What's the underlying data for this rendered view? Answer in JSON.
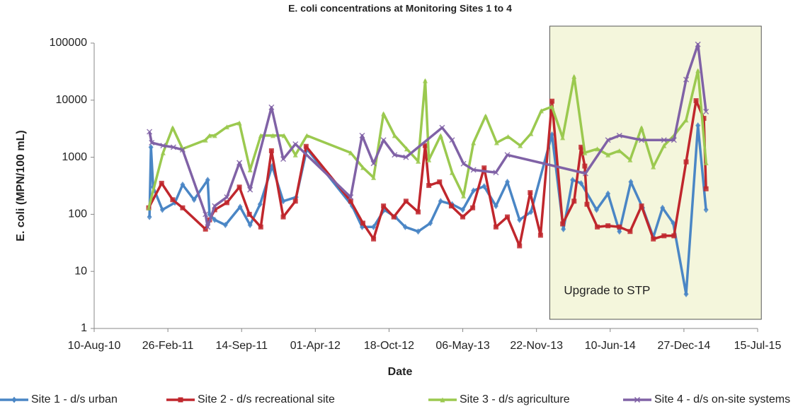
{
  "chart_data": {
    "type": "line",
    "title": "E. coli concentrations at Monitoring Sites 1 to 4",
    "x_label": "Date",
    "y_label": "E. coli (MPN/100 mL)",
    "log_y": true,
    "xlim": [
      "2010-08-10",
      "2015-07-15"
    ],
    "xticks": [
      {
        "value": "2010-08-10",
        "label": "10-Aug-10"
      },
      {
        "value": "2011-02-26",
        "label": "26-Feb-11"
      },
      {
        "value": "2011-09-14",
        "label": "14-Sep-11"
      },
      {
        "value": "2012-04-01",
        "label": "01-Apr-12"
      },
      {
        "value": "2012-10-18",
        "label": "18-Oct-12"
      },
      {
        "value": "2013-05-06",
        "label": "06-May-13"
      },
      {
        "value": "2013-11-22",
        "label": "22-Nov-13"
      },
      {
        "value": "2014-06-10",
        "label": "10-Jun-14"
      },
      {
        "value": "2014-12-27",
        "label": "27-Dec-14"
      },
      {
        "value": "2015-07-15",
        "label": "15-Jul-15"
      }
    ],
    "ylim": [
      1,
      100000
    ],
    "yticks": [
      1,
      10,
      100,
      1000,
      10000,
      100000
    ],
    "grid": true,
    "legend": "bottom",
    "highlight": {
      "x": [
        "2013-12-28",
        "2015-07-25"
      ],
      "label": "Upgrade to STP",
      "color": "#f4f6dc"
    },
    "series": [
      {
        "name": "Site 1 - d/s urban",
        "color": "#4a86c5",
        "marker": "diamond",
        "x": [
          "2011-01-07",
          "2011-01-11",
          "2011-01-17",
          "2011-02-11",
          "2011-03-17",
          "2011-04-07",
          "2011-05-08",
          "2011-06-14",
          "2011-06-19",
          "2011-07-03",
          "2011-08-01",
          "2011-09-10",
          "2011-10-07",
          "2011-11-03",
          "2011-12-06",
          "2012-01-05",
          "2012-02-09",
          "2012-03-09",
          "2012-07-10",
          "2012-08-06",
          "2012-09-06",
          "2012-10-05",
          "2012-11-04",
          "2012-12-01",
          "2013-01-05",
          "2013-02-07",
          "2013-03-07",
          "2013-04-07",
          "2013-05-06",
          "2013-06-04",
          "2013-07-03",
          "2013-08-04",
          "2013-09-04",
          "2013-10-07",
          "2013-11-07",
          "2014-01-03",
          "2014-02-03",
          "2014-02-28",
          "2014-03-23",
          "2014-05-04",
          "2014-06-04",
          "2014-07-05",
          "2014-08-05",
          "2014-09-06",
          "2014-10-05",
          "2014-10-30",
          "2014-11-28",
          "2015-01-02",
          "2015-02-03",
          "2015-02-25"
        ],
        "values": [
          90,
          1500,
          300,
          120,
          160,
          330,
          180,
          400,
          100,
          80,
          65,
          135,
          65,
          150,
          700,
          170,
          200,
          1400,
          140,
          60,
          60,
          120,
          90,
          60,
          50,
          70,
          170,
          150,
          120,
          260,
          310,
          140,
          370,
          80,
          110,
          2500,
          55,
          400,
          350,
          120,
          230,
          50,
          370,
          130,
          40,
          130,
          70,
          4,
          3600,
          120
        ]
      },
      {
        "name": "Site 2 - d/s recreational site",
        "color": "#c0272d",
        "marker": "square",
        "x": [
          "2011-01-05",
          "2011-02-09",
          "2011-03-11",
          "2011-04-07",
          "2011-06-08",
          "2011-06-19",
          "2011-07-03",
          "2011-08-05",
          "2011-09-08",
          "2011-10-05",
          "2011-11-05",
          "2011-12-04",
          "2012-01-05",
          "2012-02-07",
          "2012-03-07",
          "2012-07-06",
          "2012-08-08",
          "2012-09-06",
          "2012-10-03",
          "2012-10-31",
          "2012-12-03",
          "2013-01-05",
          "2013-01-24",
          "2013-02-03",
          "2013-03-04",
          "2013-04-05",
          "2013-05-06",
          "2013-06-02",
          "2013-07-03",
          "2013-08-04",
          "2013-09-04",
          "2013-10-07",
          "2013-11-05",
          "2013-12-03",
          "2014-01-03",
          "2014-02-01",
          "2014-03-04",
          "2014-03-23",
          "2014-04-02",
          "2014-04-08",
          "2014-05-06",
          "2014-06-04",
          "2014-07-05",
          "2014-08-03",
          "2014-09-03",
          "2014-10-05",
          "2014-11-03",
          "2014-11-30",
          "2015-01-02",
          "2015-01-29",
          "2015-02-19",
          "2015-02-25"
        ],
        "values": [
          130,
          350,
          180,
          130,
          55,
          80,
          120,
          160,
          300,
          100,
          60,
          1300,
          90,
          170,
          1550,
          170,
          70,
          37,
          140,
          90,
          170,
          110,
          1600,
          320,
          370,
          140,
          90,
          130,
          650,
          60,
          90,
          28,
          240,
          43,
          9600,
          68,
          170,
          1500,
          700,
          150,
          60,
          63,
          60,
          50,
          140,
          37,
          42,
          42,
          830,
          9800,
          4800,
          280
        ]
      },
      {
        "name": "Site 3 - d/s agriculture",
        "color": "#9bc94f",
        "marker": "triangle",
        "x": [
          "2011-01-05",
          "2011-02-13",
          "2011-03-11",
          "2011-04-07",
          "2011-06-08",
          "2011-06-19",
          "2011-07-03",
          "2011-08-05",
          "2011-09-08",
          "2011-10-07",
          "2011-11-05",
          "2011-12-08",
          "2012-01-07",
          "2012-02-07",
          "2012-03-09",
          "2012-07-06",
          "2012-08-08",
          "2012-09-06",
          "2012-10-03",
          "2012-11-02",
          "2012-12-05",
          "2013-01-05",
          "2013-01-24",
          "2013-02-03",
          "2013-03-07",
          "2013-04-07",
          "2013-05-08",
          "2013-06-04",
          "2013-07-07",
          "2013-08-06",
          "2013-09-06",
          "2013-10-09",
          "2013-11-07",
          "2013-12-05",
          "2014-01-03",
          "2014-02-01",
          "2014-03-04",
          "2014-04-02",
          "2014-05-06",
          "2014-06-04",
          "2014-07-05",
          "2014-08-03",
          "2014-09-03",
          "2014-10-05",
          "2014-11-03",
          "2014-11-30",
          "2015-01-02",
          "2015-02-03",
          "2015-02-25"
        ],
        "values": [
          130,
          1200,
          3300,
          1400,
          2000,
          2400,
          2400,
          3400,
          4000,
          600,
          2400,
          2400,
          2400,
          1100,
          2400,
          1200,
          660,
          440,
          5800,
          2400,
          1400,
          850,
          22000,
          900,
          2400,
          540,
          210,
          1800,
          5300,
          1800,
          2300,
          1600,
          2600,
          6500,
          7700,
          2200,
          26000,
          1200,
          1400,
          1100,
          1300,
          900,
          3300,
          680,
          1600,
          2400,
          4500,
          33000,
          800
        ]
      },
      {
        "name": "Site 4 - d/s on-site systems",
        "color": "#8062a6",
        "marker": "cross",
        "x": [
          "2011-01-07",
          "2011-01-13",
          "2011-02-13",
          "2011-03-13",
          "2011-04-07",
          "2011-06-08",
          "2011-06-14",
          "2011-07-03",
          "2011-08-05",
          "2011-09-08",
          "2011-10-07",
          "2011-12-04",
          "2012-01-05",
          "2012-02-07",
          "2012-07-06",
          "2012-08-06",
          "2012-09-06",
          "2012-10-03",
          "2012-11-02",
          "2012-12-03",
          "2013-03-11",
          "2013-04-07",
          "2013-05-08",
          "2013-06-04",
          "2013-08-04",
          "2013-09-04",
          "2014-04-04",
          "2014-06-04",
          "2014-07-05",
          "2014-09-03",
          "2014-11-03",
          "2014-11-30",
          "2015-01-02",
          "2015-02-03",
          "2015-02-25"
        ],
        "values": [
          2800,
          1800,
          1600,
          1500,
          1350,
          100,
          60,
          140,
          200,
          800,
          270,
          7500,
          930,
          1700,
          200,
          2400,
          780,
          2000,
          1100,
          1000,
          3300,
          2000,
          770,
          600,
          540,
          1100,
          520,
          2000,
          2400,
          2000,
          2000,
          2000,
          23000,
          95000,
          6300
        ]
      }
    ]
  }
}
